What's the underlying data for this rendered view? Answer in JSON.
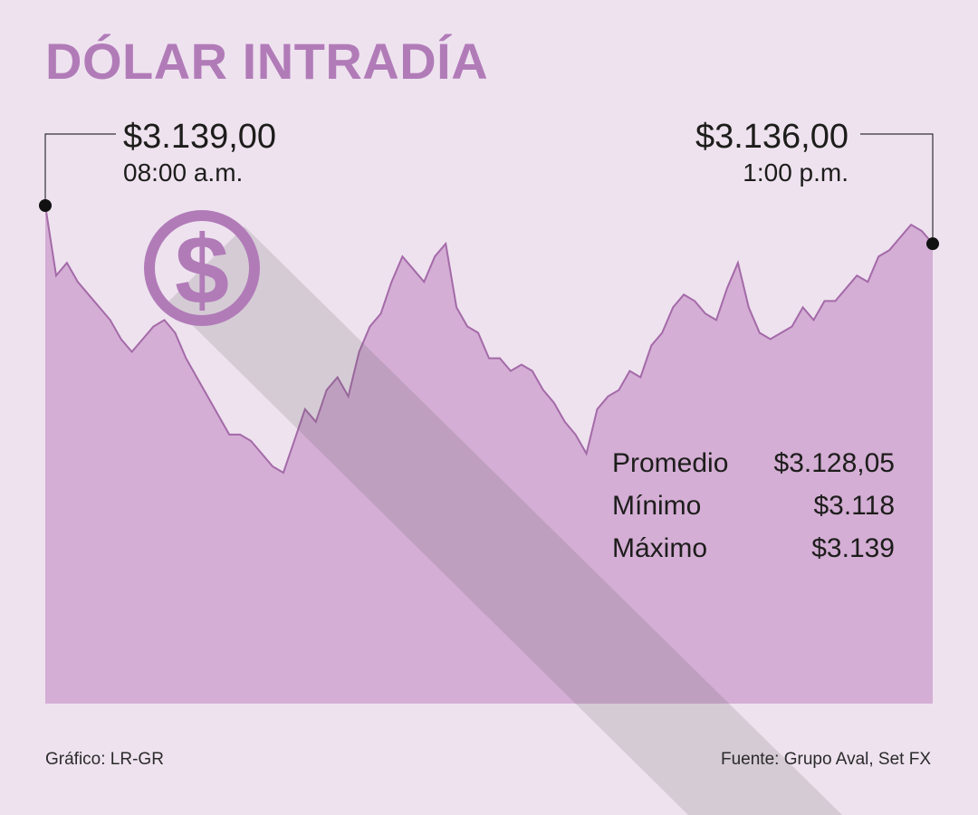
{
  "title": "DÓLAR INTRADÍA",
  "colors": {
    "background": "#eee2ef",
    "area_fill": "#d4aed5",
    "line": "#a46aa8",
    "icon": "#b17bb8",
    "shadow": "#5a5a5a"
  },
  "icon": "dollar-coin-icon",
  "start": {
    "value": "$3.139,00",
    "time": "08:00 a.m."
  },
  "end": {
    "value": "$3.136,00",
    "time": "1:00 p.m."
  },
  "stats": [
    {
      "label": "Promedio",
      "value": "$3.128,05"
    },
    {
      "label": "Mínimo",
      "value": "$3.118"
    },
    {
      "label": "Máximo",
      "value": "$3.139"
    }
  ],
  "footer": {
    "credit": "Gráfico: LR-GR",
    "source": "Fuente: Grupo Aval, Set FX"
  },
  "chart_data": {
    "type": "area",
    "xlabel": "",
    "ylabel": "",
    "x_range": [
      "08:00 a.m.",
      "1:00 p.m."
    ],
    "ylim": [
      3110,
      3143
    ],
    "series": [
      {
        "values": [
          3139.0,
          3133.5,
          3134.5,
          3133.0,
          3132.0,
          3131.0,
          3130.0,
          3128.5,
          3127.5,
          3128.5,
          3129.5,
          3130.0,
          3129.0,
          3127.0,
          3125.5,
          3124.0,
          3122.5,
          3121.0,
          3121.0,
          3120.5,
          3119.5,
          3118.5,
          3118.0,
          3120.5,
          3123.0,
          3122.0,
          3124.5,
          3125.5,
          3124.0,
          3127.5,
          3129.5,
          3130.5,
          3133.0,
          3135.0,
          3134.0,
          3133.0,
          3135.0,
          3136.0,
          3131.0,
          3129.5,
          3129.0,
          3127.0,
          3127.0,
          3126.0,
          3126.5,
          3126.0,
          3124.5,
          3123.5,
          3122.0,
          3121.0,
          3119.5,
          3123.0,
          3124.0,
          3124.5,
          3126.0,
          3125.5,
          3128.0,
          3129.0,
          3131.0,
          3132.0,
          3131.5,
          3130.5,
          3130.0,
          3132.5,
          3134.5,
          3131.0,
          3129.0,
          3128.5,
          3129.0,
          3129.5,
          3131.0,
          3130.0,
          3131.5,
          3131.5,
          3132.5,
          3133.5,
          3133.0,
          3135.0,
          3135.5,
          3136.5,
          3137.5,
          3137.0,
          3136.0
        ]
      }
    ],
    "markers": [
      {
        "point": "start",
        "value": 3139.0,
        "time": "08:00 a.m."
      },
      {
        "point": "end",
        "value": 3136.0,
        "time": "1:00 p.m."
      }
    ]
  }
}
